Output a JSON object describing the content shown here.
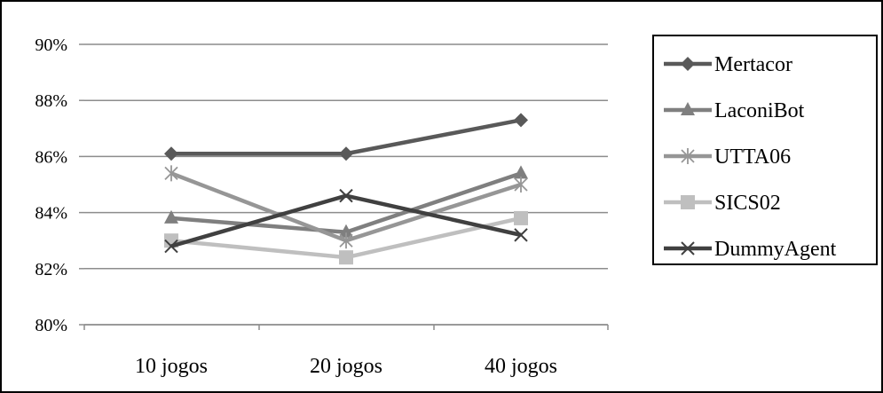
{
  "chart_data": {
    "type": "line",
    "categories": [
      "10 jogos",
      "20 jogos",
      "40 jogos"
    ],
    "yticks": [
      "80%",
      "82%",
      "84%",
      "86%",
      "88%",
      "90%"
    ],
    "ylim": [
      80,
      90
    ],
    "grid": true,
    "legend_position": "right",
    "series": [
      {
        "name": "Mertacor",
        "values": [
          86.1,
          86.1,
          87.3
        ],
        "color": "#595959",
        "marker": "diamond"
      },
      {
        "name": "LaconiBot",
        "values": [
          83.8,
          83.3,
          85.4
        ],
        "color": "#7f7f7f",
        "marker": "triangle"
      },
      {
        "name": "UTTA06",
        "values": [
          85.4,
          83.0,
          85.0
        ],
        "color": "#969696",
        "marker": "asterisk"
      },
      {
        "name": "SICS02",
        "values": [
          83.0,
          82.4,
          83.8
        ],
        "color": "#bfbfbf",
        "marker": "square"
      },
      {
        "name": "DummyAgent",
        "values": [
          82.8,
          84.6,
          83.2
        ],
        "color": "#404040",
        "marker": "x"
      }
    ]
  }
}
